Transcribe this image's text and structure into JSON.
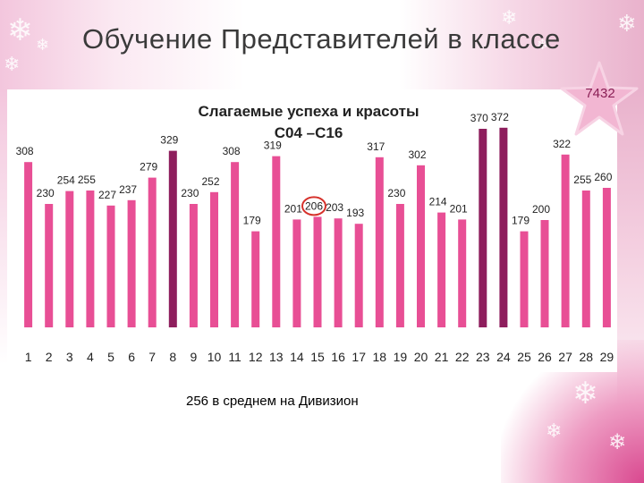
{
  "slide": {
    "title": "Обучение Представителей в классе",
    "star_value": "7432",
    "average_note": "256  в среднем на Дивизион"
  },
  "colors": {
    "bar_pink": "#e84f95",
    "bar_purple": "#8e1e5d",
    "highlight_circle": "#d6312b",
    "star_fill": "#f2b6d2"
  },
  "chart_data": {
    "type": "bar",
    "title_lines": [
      "Слагаемые успеха и красоты",
      "С04 –С16"
    ],
    "categories": [
      "1",
      "2",
      "3",
      "4",
      "5",
      "6",
      "7",
      "8",
      "9",
      "10",
      "11",
      "12",
      "13",
      "14",
      "15",
      "16",
      "17",
      "18",
      "19",
      "20",
      "21",
      "22",
      "23",
      "24",
      "25",
      "26",
      "27",
      "28",
      "29"
    ],
    "values": [
      308,
      230,
      254,
      255,
      227,
      237,
      279,
      329,
      230,
      252,
      308,
      179,
      319,
      201,
      206,
      203,
      193,
      317,
      230,
      302,
      214,
      201,
      370,
      372,
      179,
      200,
      322,
      255,
      260
    ],
    "labels": [
      "308",
      "230",
      "254",
      "255",
      "227",
      "237",
      "279",
      "329",
      "230",
      "252",
      "308",
      "179",
      "319",
      "201",
      "206",
      "203",
      "193",
      "317",
      "230",
      "302",
      "214",
      "201",
      "370",
      "372",
      "179",
      "200",
      "322",
      "255",
      "260"
    ],
    "highlighted_categories": [
      "8",
      "23",
      "24"
    ],
    "circled_category": "15",
    "ylim": [
      0,
      420
    ],
    "grid": false,
    "legend": "none"
  }
}
